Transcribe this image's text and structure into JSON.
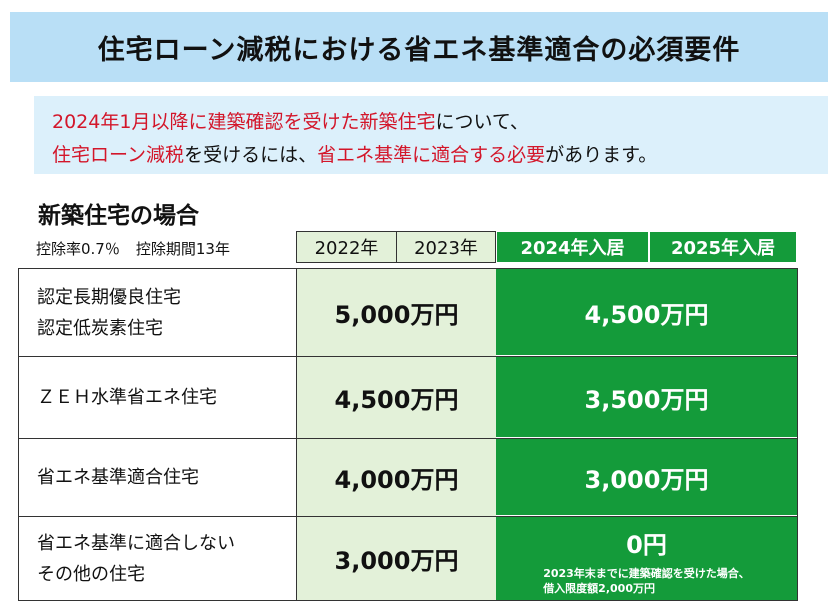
{
  "title": "住宅ローン減税における省エネ基準適合の必須要件",
  "notice": {
    "line1_red": "2024年1月以降に建築確認を受けた新築住宅",
    "line1_black": "について、",
    "line2_red1": "住宅ローン減税",
    "line2_black1": "を受けるには、",
    "line2_red2": "省エネ基準に適合する必要",
    "line2_black2": "があります。"
  },
  "section_title": "新築住宅の場合",
  "rates": {
    "deduction_rate": "控除率0.7％",
    "deduction_period": "控除期間13年"
  },
  "columns": [
    "2022年",
    "2023年",
    "2024年入居",
    "2025年入居"
  ],
  "rows": [
    {
      "label1": "認定長期優良住宅",
      "label2": "認定低炭素住宅",
      "amount_2022_2023": "5,000万円",
      "amount_2024_2025": "4,500万円"
    },
    {
      "label1": "ＺＥＨ水準省エネ住宅",
      "label2": "",
      "amount_2022_2023": "4,500万円",
      "amount_2024_2025": "3,500万円"
    },
    {
      "label1": "省エネ基準適合住宅",
      "label2": "",
      "amount_2022_2023": "4,000万円",
      "amount_2024_2025": "3,000万円"
    },
    {
      "label1": "省エネ基準に適合しない",
      "label2": "その他の住宅",
      "amount_2022_2023": "3,000万円",
      "amount_2024_2025": "0円"
    }
  ],
  "footnote": {
    "line1": "2023年末までに建築確認を受けた場合、",
    "line2": "借入限度額2,000万円"
  },
  "colors": {
    "title_bg": "#b9dff6",
    "notice_bg": "#dcf0fb",
    "highlight_red": "#d3162a",
    "light_green": "#e3f1d9",
    "dark_green": "#149b3a"
  }
}
